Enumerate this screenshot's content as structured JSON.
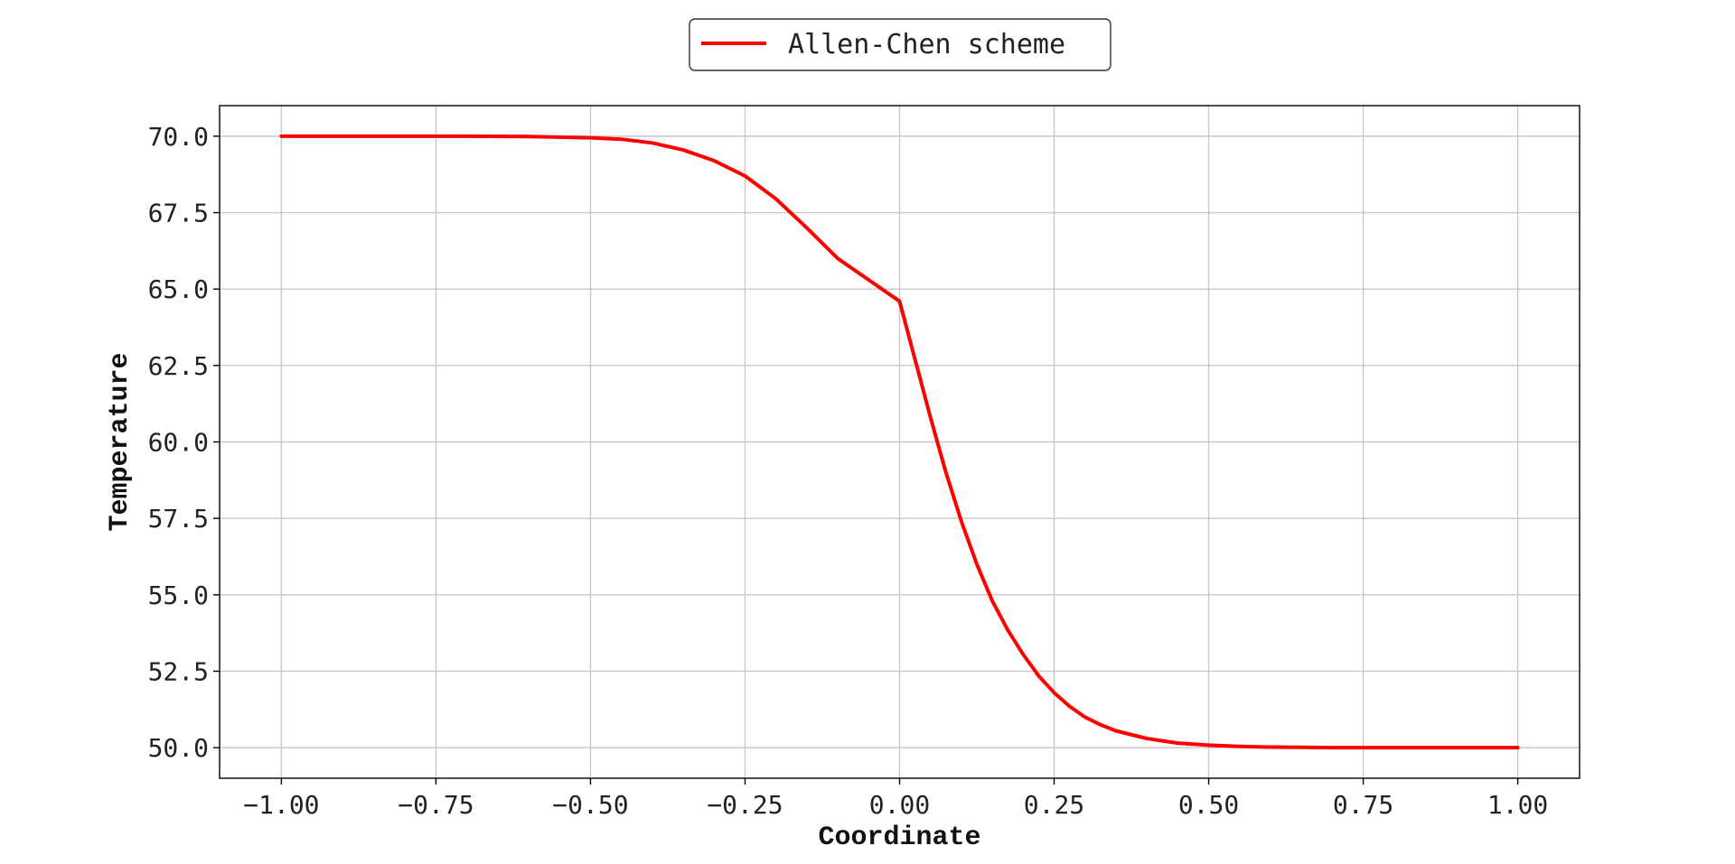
{
  "chart_data": {
    "type": "line",
    "title": "",
    "xlabel": "Coordinate",
    "ylabel": "Temperature",
    "xlim": [
      -1.1,
      1.1
    ],
    "ylim": [
      49.0,
      71.0
    ],
    "grid": true,
    "legend_position": "top-center",
    "x_ticks": [
      -1.0,
      -0.75,
      -0.5,
      -0.25,
      0.0,
      0.25,
      0.5,
      0.75,
      1.0
    ],
    "x_tick_labels": [
      "−1.00",
      "−0.75",
      "−0.50",
      "−0.25",
      "0.00",
      "0.25",
      "0.50",
      "0.75",
      "1.00"
    ],
    "y_ticks": [
      50.0,
      52.5,
      55.0,
      57.5,
      60.0,
      62.5,
      65.0,
      67.5,
      70.0
    ],
    "y_tick_labels": [
      "50.0",
      "52.5",
      "55.0",
      "57.5",
      "60.0",
      "62.5",
      "65.0",
      "67.5",
      "70.0"
    ],
    "series": [
      {
        "name": "Allen-Chen scheme",
        "color": "#ff0000",
        "x": [
          -1.0,
          -0.9,
          -0.8,
          -0.7,
          -0.6,
          -0.5,
          -0.45,
          -0.4,
          -0.35,
          -0.3,
          -0.25,
          -0.2,
          -0.15,
          -0.1,
          -0.05,
          0.0,
          0.025,
          0.05,
          0.075,
          0.1,
          0.125,
          0.15,
          0.175,
          0.2,
          0.225,
          0.25,
          0.275,
          0.3,
          0.325,
          0.35,
          0.4,
          0.45,
          0.5,
          0.55,
          0.6,
          0.65,
          0.7,
          0.75,
          0.8,
          0.9,
          1.0
        ],
        "y": [
          70.0,
          70.0,
          70.0,
          70.0,
          69.99,
          69.95,
          69.9,
          69.78,
          69.55,
          69.2,
          68.7,
          67.95,
          67.0,
          66.0,
          65.3,
          64.6,
          62.7,
          60.8,
          59.0,
          57.4,
          56.0,
          54.8,
          53.85,
          53.05,
          52.35,
          51.8,
          51.35,
          51.0,
          50.75,
          50.55,
          50.3,
          50.15,
          50.08,
          50.04,
          50.02,
          50.01,
          50.0,
          50.0,
          50.0,
          50.0,
          50.0
        ]
      }
    ]
  }
}
